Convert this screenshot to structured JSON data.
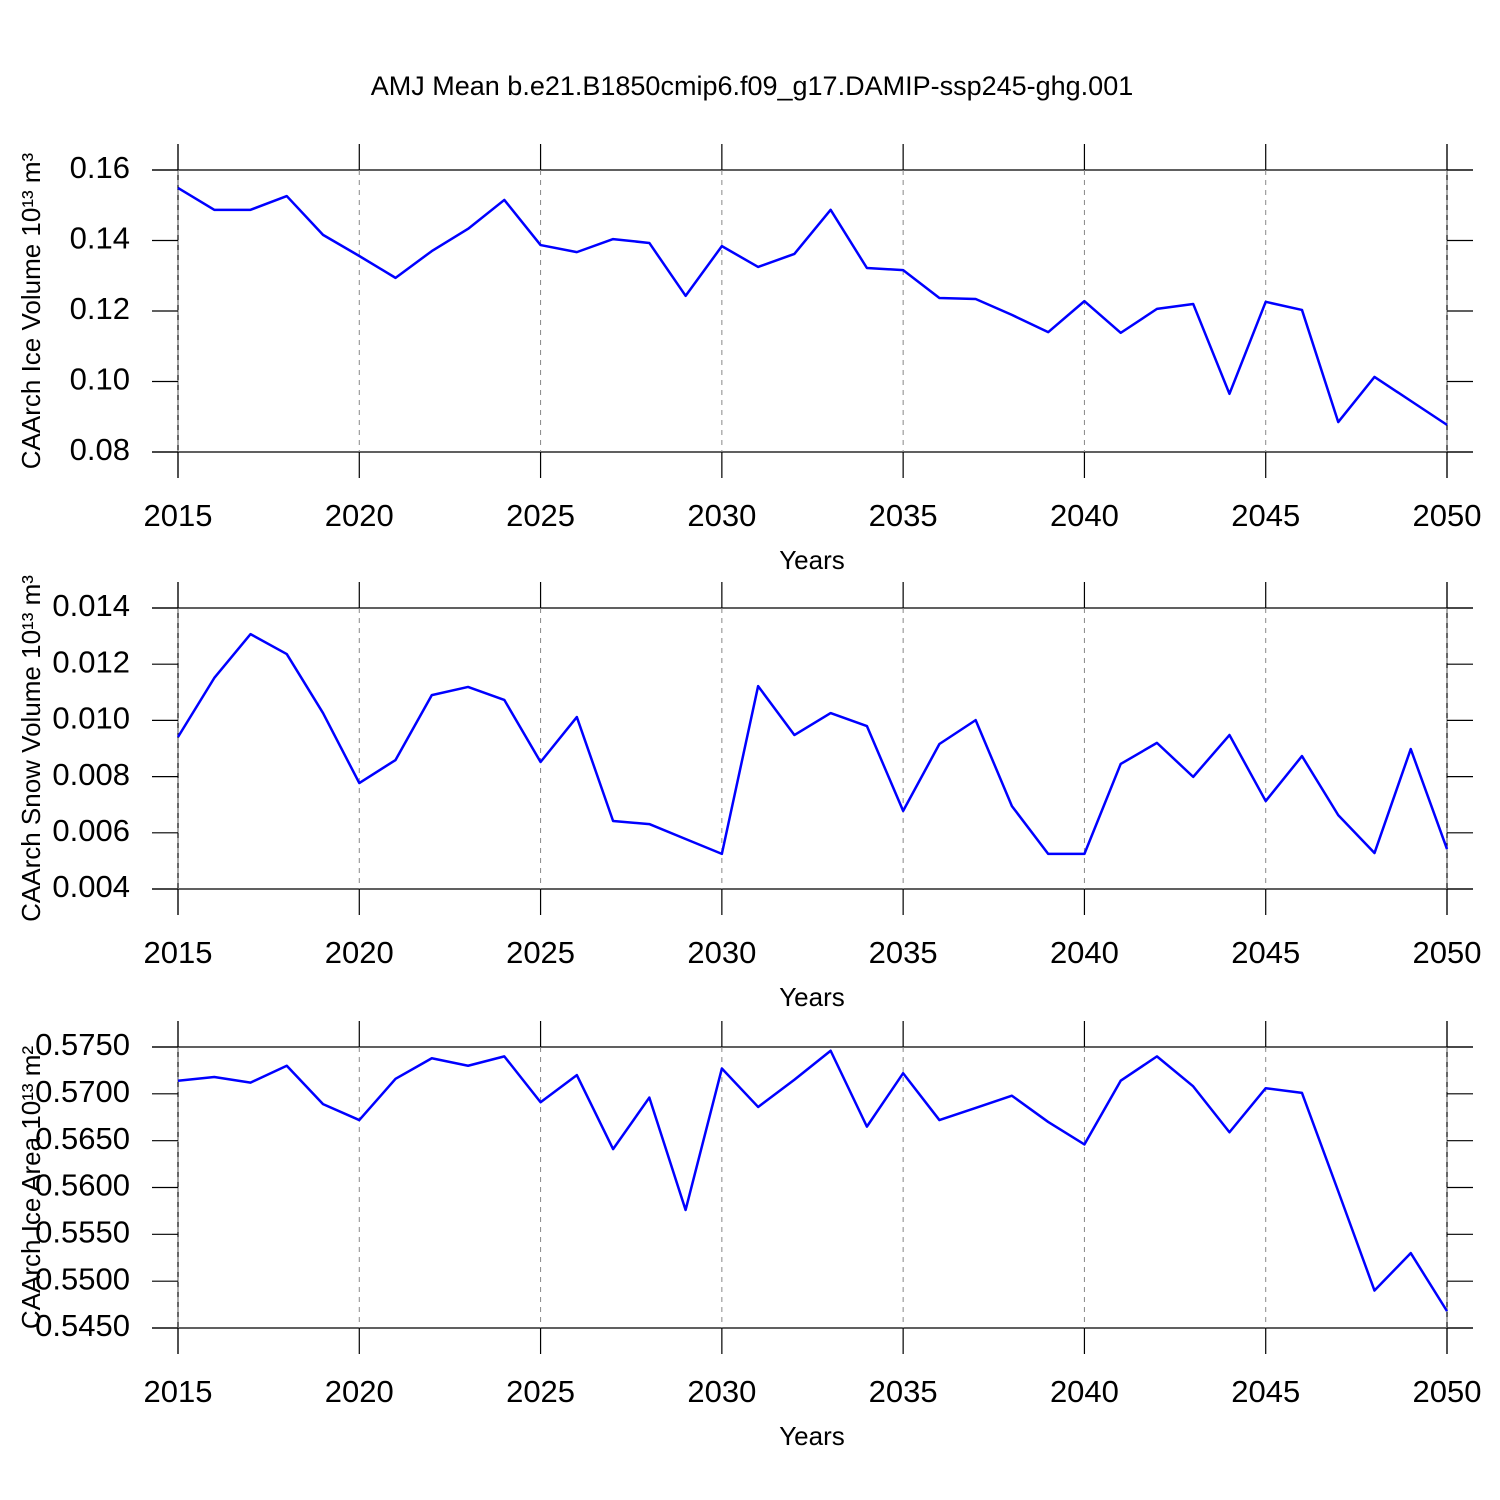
{
  "title": "AMJ Mean b.e21.B1850cmip6.f09_g17.DAMIP-ssp245-ghg.001",
  "chart_data": [
    {
      "type": "line",
      "xlabel": "Years",
      "ylabel": "CAArch Ice Volume 10¹³ m³",
      "color": "#0000ff",
      "x": [
        2015,
        2016,
        2017,
        2018,
        2019,
        2020,
        2021,
        2022,
        2023,
        2024,
        2025,
        2026,
        2027,
        2028,
        2029,
        2030,
        2031,
        2032,
        2033,
        2034,
        2035,
        2036,
        2037,
        2038,
        2039,
        2040,
        2041,
        2042,
        2043,
        2044,
        2045,
        2046,
        2047,
        2048,
        2049,
        2050
      ],
      "values": [
        0.1549,
        0.1487,
        0.1487,
        0.1526,
        0.1416,
        0.1356,
        0.1294,
        0.137,
        0.1433,
        0.1515,
        0.1387,
        0.1367,
        0.1404,
        0.1393,
        0.1243,
        0.1384,
        0.1325,
        0.1362,
        0.1487,
        0.1322,
        0.1316,
        0.1237,
        0.1234,
        0.1189,
        0.114,
        0.1228,
        0.1138,
        0.1206,
        0.122,
        0.0965,
        0.1226,
        0.1203,
        0.0885,
        0.1013,
        0.0945,
        0.0877
      ],
      "xlim": [
        2015,
        2050
      ],
      "xticks": [
        2015,
        2020,
        2025,
        2030,
        2035,
        2040,
        2045,
        2050
      ],
      "ylim": [
        0.08,
        0.16
      ],
      "yticks": [
        0.08,
        {
          "value": 0.1,
          "label": "0.10"
        },
        0.12,
        0.14,
        0.16
      ],
      "grid": true
    },
    {
      "type": "line",
      "xlabel": "Years",
      "ylabel": "CAArch Snow Volume 10¹³ m³",
      "color": "#0000ff",
      "x": [
        2015,
        2016,
        2017,
        2018,
        2019,
        2020,
        2021,
        2022,
        2023,
        2024,
        2025,
        2026,
        2027,
        2028,
        2029,
        2030,
        2031,
        2032,
        2033,
        2034,
        2035,
        2036,
        2037,
        2038,
        2039,
        2040,
        2041,
        2042,
        2043,
        2044,
        2045,
        2046,
        2047,
        2048,
        2049,
        2050
      ],
      "values": [
        0.00941,
        0.01151,
        0.01307,
        0.01236,
        0.01026,
        0.00777,
        0.00859,
        0.0109,
        0.01119,
        0.01073,
        0.00852,
        0.01012,
        0.00642,
        0.00631,
        0.00578,
        0.00525,
        0.01122,
        0.00948,
        0.01026,
        0.0098,
        0.00678,
        0.00916,
        0.01001,
        0.00695,
        0.00525,
        0.00525,
        0.00845,
        0.0092,
        0.00799,
        0.00948,
        0.00713,
        0.00873,
        0.00663,
        0.00528,
        0.00898,
        0.00542
      ],
      "xlim": [
        2015,
        2050
      ],
      "xticks": [
        2015,
        2020,
        2025,
        2030,
        2035,
        2040,
        2045,
        2050
      ],
      "ylim": [
        0.004,
        0.014
      ],
      "yticks": [
        0.004,
        0.006,
        0.008,
        {
          "value": 0.01,
          "label": "0.010"
        },
        0.012,
        0.014
      ],
      "grid": true
    },
    {
      "type": "line",
      "xlabel": "Years",
      "ylabel": "CAArch Ice Area 10¹³ m²",
      "color": "#0000ff",
      "x": [
        2015,
        2016,
        2017,
        2018,
        2019,
        2020,
        2021,
        2022,
        2023,
        2024,
        2025,
        2026,
        2027,
        2028,
        2029,
        2030,
        2031,
        2032,
        2033,
        2034,
        2035,
        2036,
        2037,
        2038,
        2039,
        2040,
        2041,
        2042,
        2043,
        2044,
        2045,
        2046,
        2047,
        2048,
        2049,
        2050
      ],
      "values": [
        0.5714,
        0.5718,
        0.5712,
        0.573,
        0.5689,
        0.5672,
        0.5716,
        0.5738,
        0.573,
        0.574,
        0.5691,
        0.572,
        0.5641,
        0.5696,
        0.5576,
        0.5727,
        0.5686,
        0.5715,
        0.5746,
        0.5665,
        0.5722,
        0.5672,
        0.5685,
        0.5698,
        0.567,
        0.5646,
        0.5714,
        0.574,
        0.5708,
        0.5659,
        0.5706,
        0.5701,
        0.5596,
        0.549,
        0.553,
        0.5468
      ],
      "xlim": [
        2015,
        2050
      ],
      "xticks": [
        2015,
        2020,
        2025,
        2030,
        2035,
        2040,
        2045,
        2050
      ],
      "ylim": [
        0.545,
        0.575
      ],
      "yticks": [
        {
          "value": 0.545,
          "label": "0.5450"
        },
        {
          "value": 0.55,
          "label": "0.5500"
        },
        {
          "value": 0.555,
          "label": "0.5550"
        },
        {
          "value": 0.56,
          "label": "0.5600"
        },
        {
          "value": 0.565,
          "label": "0.5650"
        },
        {
          "value": 0.57,
          "label": "0.5700"
        },
        {
          "value": 0.575,
          "label": "0.5750"
        }
      ],
      "grid": true
    }
  ]
}
